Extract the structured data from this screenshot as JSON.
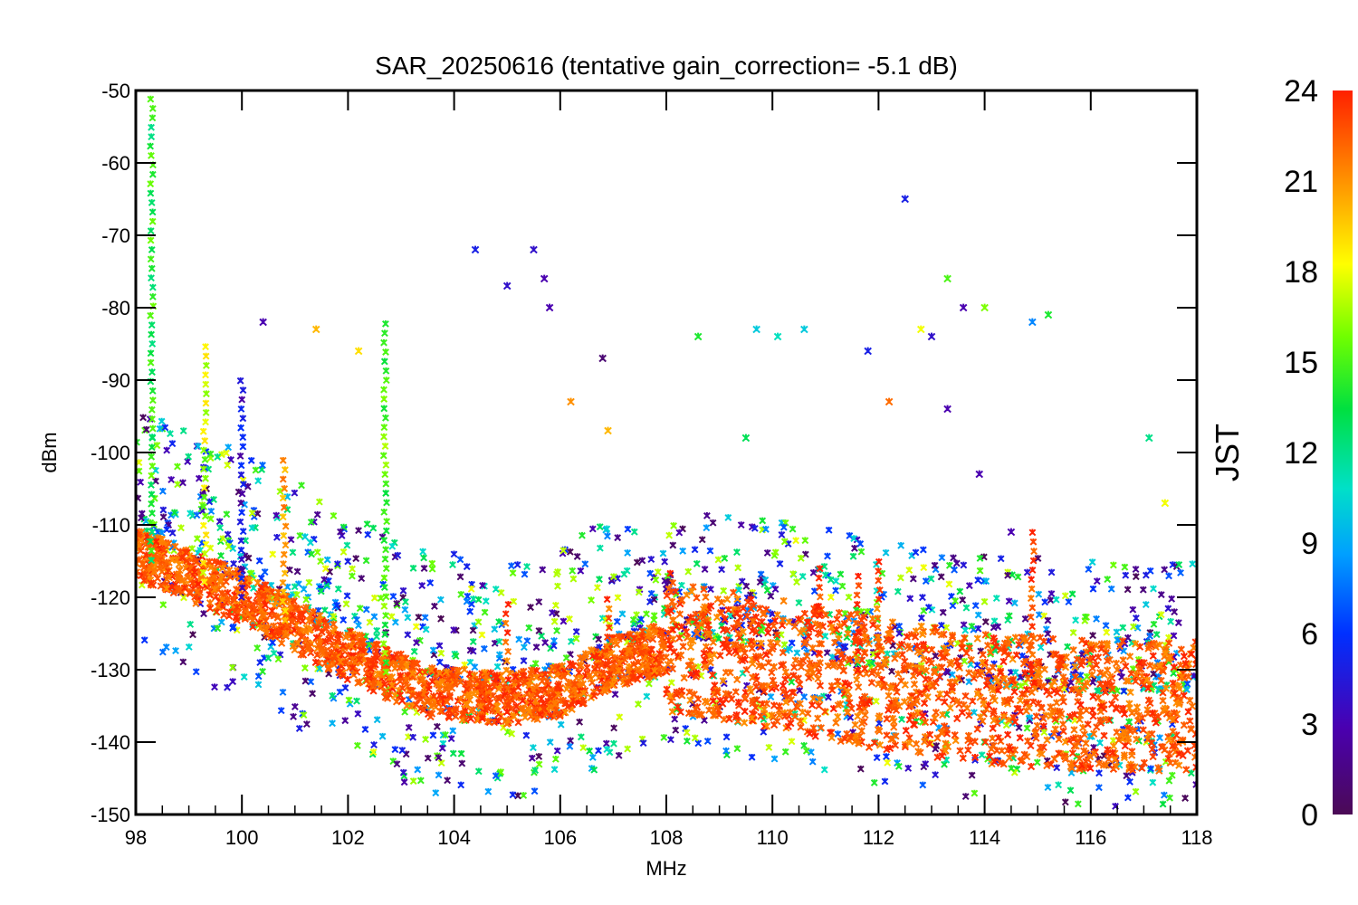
{
  "chart_data": {
    "type": "scatter",
    "title": "SAR_20250616 (tentative gain_correction= -5.1 dB)",
    "xlabel": "MHz",
    "ylabel": "dBm",
    "xlim": [
      98,
      118
    ],
    "ylim": [
      -150,
      -50
    ],
    "xticks": [
      "98",
      "100",
      "102",
      "104",
      "106",
      "108",
      "110",
      "112",
      "114",
      "116",
      "118"
    ],
    "yticks": [
      "-50",
      "-60",
      "-70",
      "-80",
      "-90",
      "-100",
      "-110",
      "-120",
      "-130",
      "-140",
      "-150"
    ],
    "grid": false,
    "colorbar": {
      "label": "JST",
      "range": [
        0,
        24
      ],
      "ticks": [
        "0",
        "3",
        "6",
        "9",
        "12",
        "15",
        "18",
        "21",
        "24"
      ],
      "colormap": "rainbow (purple-blue-cyan-green-yellow-orange-red)"
    },
    "baseline_floor_dbm": [
      {
        "mhz": 98,
        "dbm": -114
      },
      {
        "mhz": 100,
        "dbm": -120
      },
      {
        "mhz": 102,
        "dbm": -128
      },
      {
        "mhz": 103.5,
        "dbm": -133
      },
      {
        "mhz": 105,
        "dbm": -134
      },
      {
        "mhz": 106,
        "dbm": -133
      },
      {
        "mhz": 107,
        "dbm": -129
      },
      {
        "mhz": 108,
        "dbm": -127
      },
      {
        "mhz": 110,
        "dbm": -129
      },
      {
        "mhz": 112,
        "dbm": -132
      },
      {
        "mhz": 114,
        "dbm": -134
      },
      {
        "mhz": 116,
        "dbm": -135
      },
      {
        "mhz": 118,
        "dbm": -135
      }
    ],
    "spikes": [
      {
        "mhz": 98.3,
        "top_dbm": -50,
        "jst": 14
      },
      {
        "mhz": 99.3,
        "top_dbm": -85,
        "jst": 17
      },
      {
        "mhz": 100.0,
        "top_dbm": -89,
        "jst": 4
      },
      {
        "mhz": 100.8,
        "top_dbm": -100,
        "jst": 20
      },
      {
        "mhz": 102.7,
        "top_dbm": -81,
        "jst": 15
      },
      {
        "mhz": 105.0,
        "top_dbm": -120,
        "jst": 23
      },
      {
        "mhz": 106.9,
        "top_dbm": -120,
        "jst": 23
      },
      {
        "mhz": 108.1,
        "top_dbm": -116,
        "jst": 23
      },
      {
        "mhz": 110.9,
        "top_dbm": -115,
        "jst": 23
      },
      {
        "mhz": 111.6,
        "top_dbm": -117,
        "jst": 23
      },
      {
        "mhz": 112.0,
        "top_dbm": -115,
        "jst": 23
      },
      {
        "mhz": 114.9,
        "top_dbm": -111,
        "jst": 23
      }
    ],
    "scattered_points": [
      {
        "mhz": 100.4,
        "dbm": -82,
        "jst": 3
      },
      {
        "mhz": 101.4,
        "dbm": -83,
        "jst": 20
      },
      {
        "mhz": 102.2,
        "dbm": -86,
        "jst": 19
      },
      {
        "mhz": 104.4,
        "dbm": -72,
        "jst": 5
      },
      {
        "mhz": 105.0,
        "dbm": -77,
        "jst": 4
      },
      {
        "mhz": 105.5,
        "dbm": -72,
        "jst": 4
      },
      {
        "mhz": 105.7,
        "dbm": -76,
        "jst": 3
      },
      {
        "mhz": 105.8,
        "dbm": -80,
        "jst": 3
      },
      {
        "mhz": 106.2,
        "dbm": -93,
        "jst": 21
      },
      {
        "mhz": 106.8,
        "dbm": -87,
        "jst": 1
      },
      {
        "mhz": 106.9,
        "dbm": -97,
        "jst": 20
      },
      {
        "mhz": 108.6,
        "dbm": -84,
        "jst": 14
      },
      {
        "mhz": 109.5,
        "dbm": -98,
        "jst": 13
      },
      {
        "mhz": 109.7,
        "dbm": -83,
        "jst": 10
      },
      {
        "mhz": 110.1,
        "dbm": -84,
        "jst": 11
      },
      {
        "mhz": 110.6,
        "dbm": -83,
        "jst": 10
      },
      {
        "mhz": 111.8,
        "dbm": -86,
        "jst": 5
      },
      {
        "mhz": 112.2,
        "dbm": -93,
        "jst": 22
      },
      {
        "mhz": 112.5,
        "dbm": -65,
        "jst": 5
      },
      {
        "mhz": 112.8,
        "dbm": -83,
        "jst": 18
      },
      {
        "mhz": 113.0,
        "dbm": -84,
        "jst": 4
      },
      {
        "mhz": 113.3,
        "dbm": -76,
        "jst": 15
      },
      {
        "mhz": 113.6,
        "dbm": -80,
        "jst": 3
      },
      {
        "mhz": 114.0,
        "dbm": -80,
        "jst": 16
      },
      {
        "mhz": 114.9,
        "dbm": -82,
        "jst": 8
      },
      {
        "mhz": 115.2,
        "dbm": -81,
        "jst": 14
      },
      {
        "mhz": 117.1,
        "dbm": -98,
        "jst": 12
      },
      {
        "mhz": 117.4,
        "dbm": -107,
        "jst": 18
      },
      {
        "mhz": 113.3,
        "dbm": -94,
        "jst": 3
      },
      {
        "mhz": 113.9,
        "dbm": -103,
        "jst": 3
      },
      {
        "mhz": 114.5,
        "dbm": -111,
        "jst": 3
      }
    ]
  }
}
